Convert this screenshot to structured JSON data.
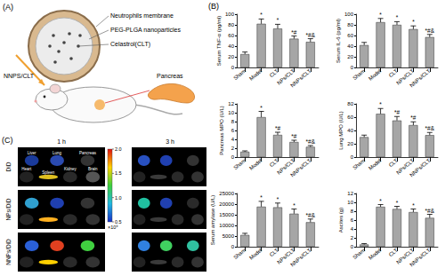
{
  "panels": {
    "A": {
      "label": "(A)",
      "texts": {
        "membrane": "Neutrophils membrane",
        "nanoparticle": "PEG-PLGA nanoparticles",
        "drug": "Celastrol(CLT)",
        "injection": "NNPS/CLT",
        "organ": "Pancreas"
      }
    },
    "B": {
      "label": "(B)"
    },
    "C": {
      "label": "(C)",
      "times": [
        "1 h",
        "3 h"
      ],
      "groups": [
        "DiD",
        "NPs/DiD",
        "NNPs/DiD"
      ],
      "organs": [
        "Liver",
        "Lung",
        "Pancreas",
        "Heart",
        "Spleen",
        "Kidney",
        "Brain"
      ],
      "colorbar": {
        "range": [
          0.5,
          2.0
        ],
        "ticks": [
          {
            "value": 2.0,
            "label": "2.0"
          },
          {
            "value": 1.5,
            "label": "1.5"
          },
          {
            "value": 1.0,
            "label": "1.0"
          },
          {
            "value": 0.5,
            "label": "0.5"
          }
        ],
        "unit": "×10⁹"
      }
    }
  },
  "chart_data": [
    {
      "type": "bar",
      "ylabel": "Serum TNF-α (pg/ml)",
      "categories": [
        "Sham",
        "Model",
        "CLT",
        "NPs/CLT",
        "NNPs/CLT"
      ],
      "values": [
        25,
        82,
        73,
        54,
        48
      ],
      "errors": [
        4,
        9,
        8,
        5,
        6
      ],
      "annotations": [
        null,
        "*",
        "*",
        "*#",
        "*#&"
      ],
      "color": "#a6a6a6",
      "ylim": [
        0,
        100
      ],
      "yticks": [
        0,
        20,
        40,
        60,
        80,
        100
      ],
      "grid": false
    },
    {
      "type": "bar",
      "ylabel": "Serum IL-6 (pg/ml)",
      "categories": [
        "Sham",
        "Model",
        "CLT",
        "NPs/CLT",
        "NNPs/CLT"
      ],
      "values": [
        42,
        85,
        80,
        72,
        57
      ],
      "errors": [
        5,
        7,
        6,
        6,
        5
      ],
      "annotations": [
        null,
        "*",
        "*",
        "*",
        "*#&"
      ],
      "color": "#a6a6a6",
      "ylim": [
        0,
        100
      ],
      "yticks": [
        0,
        20,
        40,
        60,
        80,
        100
      ],
      "grid": false
    },
    {
      "type": "bar",
      "ylabel": "Pancreas MPO (U/L)",
      "categories": [
        "Sham",
        "Model",
        "CLT",
        "NPs/CLT",
        "NNPs/CLT"
      ],
      "values": [
        1.2,
        9,
        5,
        3.4,
        2.3
      ],
      "errors": [
        0.2,
        1.3,
        0.6,
        0.4,
        0.3
      ],
      "annotations": [
        null,
        "*",
        "*#",
        "*#",
        "*#&"
      ],
      "color": "#a6a6a6",
      "ylim": [
        0,
        12
      ],
      "yticks": [
        0,
        2,
        4,
        6,
        8,
        10,
        12
      ],
      "grid": false
    },
    {
      "type": "bar",
      "ylabel": "Lung MPO (U/L)",
      "categories": [
        "Sham",
        "Model",
        "CLT",
        "NPs/CLT",
        "NNPs/CLT"
      ],
      "values": [
        30,
        65,
        55,
        48,
        33
      ],
      "errors": [
        3,
        8,
        6,
        5,
        4
      ],
      "annotations": [
        null,
        "*",
        "*#",
        "*#",
        "*#&"
      ],
      "color": "#a6a6a6",
      "ylim": [
        0,
        80
      ],
      "yticks": [
        0,
        20,
        40,
        60,
        80
      ],
      "grid": false
    },
    {
      "type": "bar",
      "ylabel": "Serum amylase (U/L)",
      "categories": [
        "Sham",
        "Model",
        "CLT",
        "NPs/CLT",
        "NNPs/CLT"
      ],
      "values": [
        5500,
        18800,
        18500,
        15500,
        11500
      ],
      "errors": [
        800,
        2500,
        2000,
        2200,
        1500
      ],
      "annotations": [
        null,
        "*",
        "*",
        "*",
        "*#&"
      ],
      "color": "#a6a6a6",
      "ylim": [
        0,
        25000
      ],
      "yticks": [
        0,
        5000,
        10000,
        15000,
        20000,
        25000
      ],
      "grid": false
    },
    {
      "type": "bar",
      "ylabel": "Ascites (g)",
      "categories": [
        "Sham",
        "Model",
        "CLT",
        "NPs/CLT",
        "NNPs/CLT"
      ],
      "values": [
        0.5,
        9,
        8.5,
        7.8,
        6.5
      ],
      "errors": [
        0.2,
        0.5,
        0.6,
        0.7,
        0.8
      ],
      "annotations": [
        null,
        "*",
        "*",
        "*",
        "*#&"
      ],
      "color": "#a6a6a6",
      "ylim": [
        0,
        12
      ],
      "yticks": [
        0,
        2,
        4,
        6,
        8,
        10,
        12
      ],
      "grid": false
    }
  ]
}
